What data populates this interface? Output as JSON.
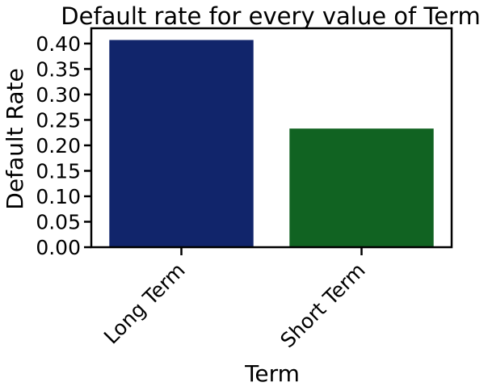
{
  "chart_data": {
    "type": "bar",
    "title": "Default rate for every value of Term",
    "xlabel": "Term",
    "ylabel": "Default Rate",
    "categories": [
      "Long Term",
      "Short Term"
    ],
    "values": [
      0.407,
      0.233
    ],
    "ylim": [
      0,
      0.43
    ],
    "yticks": [
      "0.00",
      "0.05",
      "0.10",
      "0.15",
      "0.20",
      "0.25",
      "0.30",
      "0.35",
      "0.40"
    ],
    "colors": [
      "#11256b",
      "#116322"
    ],
    "grid": false,
    "legend": "none"
  }
}
